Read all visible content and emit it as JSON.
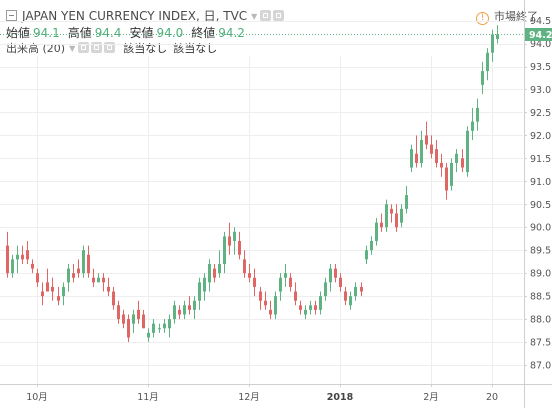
{
  "header": {
    "title": "JAPAN YEN CURRENCY INDEX, 日, TVC",
    "ohlc": [
      {
        "label": "始値",
        "value": "94.1"
      },
      {
        "label": "高値",
        "value": "94.4"
      },
      {
        "label": "安値",
        "value": "94.0"
      },
      {
        "label": "終値",
        "value": "94.2"
      }
    ],
    "volume_label": "出来高 (20)",
    "na_1": "該当なし",
    "na_2": "該当なし",
    "status": "市場終了"
  },
  "colors": {
    "up": "#5fb382",
    "down": "#e06666",
    "grid": "#eeeeee",
    "last_price": "#5fb382"
  },
  "chart_data": {
    "type": "candlestick",
    "ylim": [
      87.0,
      94.6
    ],
    "y_ticks": [
      "87.0",
      "87.5",
      "88.0",
      "88.5",
      "89.0",
      "89.5",
      "90.0",
      "90.5",
      "91.0",
      "91.5",
      "92.0",
      "92.5",
      "93.0",
      "93.5",
      "94.0",
      "94.5"
    ],
    "x_ticks": [
      {
        "label": "10月",
        "index": 6,
        "bold": false
      },
      {
        "label": "11月",
        "index": 28,
        "bold": false
      },
      {
        "label": "12月",
        "index": 48,
        "bold": false
      },
      {
        "label": "2018",
        "index": 66,
        "bold": true
      },
      {
        "label": "2月",
        "index": 84,
        "bold": false
      },
      {
        "label": "20",
        "index": 96,
        "bold": false
      }
    ],
    "last_price": "94.2",
    "candles": [
      [
        89.6,
        89.9,
        88.9,
        89.0
      ],
      [
        89.0,
        89.4,
        88.9,
        89.3
      ],
      [
        89.3,
        89.6,
        89.0,
        89.4
      ],
      [
        89.4,
        89.6,
        89.2,
        89.3
      ],
      [
        89.5,
        89.7,
        89.2,
        89.3
      ],
      [
        89.2,
        89.3,
        89.0,
        89.1
      ],
      [
        89.0,
        89.1,
        88.7,
        88.8
      ],
      [
        88.6,
        88.8,
        88.3,
        88.5
      ],
      [
        88.8,
        89.1,
        88.6,
        88.6
      ],
      [
        88.7,
        88.9,
        88.4,
        88.6
      ],
      [
        88.5,
        88.7,
        88.3,
        88.4
      ],
      [
        88.5,
        88.8,
        88.3,
        88.7
      ],
      [
        88.8,
        89.2,
        88.6,
        89.1
      ],
      [
        89.0,
        89.2,
        88.8,
        88.9
      ],
      [
        89.1,
        89.3,
        88.9,
        89.0
      ],
      [
        89.0,
        89.6,
        88.9,
        89.5
      ],
      [
        89.4,
        89.6,
        88.9,
        89.0
      ],
      [
        88.9,
        89.1,
        88.7,
        88.8
      ],
      [
        88.8,
        89.0,
        88.8,
        88.9
      ],
      [
        88.9,
        89.0,
        88.6,
        88.8
      ],
      [
        88.7,
        88.9,
        88.5,
        88.6
      ],
      [
        88.6,
        88.7,
        88.2,
        88.3
      ],
      [
        88.3,
        88.4,
        87.9,
        88.0
      ],
      [
        88.1,
        88.2,
        87.8,
        87.9
      ],
      [
        88.0,
        88.1,
        87.5,
        87.6
      ],
      [
        87.9,
        88.2,
        87.7,
        88.1
      ],
      [
        88.2,
        88.4,
        87.9,
        88.0
      ],
      [
        88.1,
        88.2,
        87.8,
        87.8
      ],
      [
        87.6,
        87.8,
        87.5,
        87.7
      ],
      [
        87.7,
        88.0,
        87.6,
        87.9
      ],
      [
        87.8,
        87.9,
        87.7,
        87.8
      ],
      [
        87.8,
        88.0,
        87.7,
        87.9
      ],
      [
        87.8,
        88.1,
        87.6,
        88.0
      ],
      [
        88.0,
        88.4,
        87.9,
        88.3
      ],
      [
        88.2,
        88.3,
        88.0,
        88.1
      ],
      [
        88.1,
        88.4,
        88.0,
        88.3
      ],
      [
        88.3,
        88.5,
        88.1,
        88.2
      ],
      [
        88.2,
        88.5,
        88.0,
        88.4
      ],
      [
        88.4,
        88.9,
        88.2,
        88.8
      ],
      [
        88.6,
        89.0,
        88.4,
        88.9
      ],
      [
        88.8,
        89.3,
        88.6,
        89.2
      ],
      [
        89.1,
        89.2,
        88.8,
        88.9
      ],
      [
        89.0,
        89.5,
        88.9,
        89.2
      ],
      [
        89.2,
        89.9,
        89.0,
        89.8
      ],
      [
        89.8,
        90.1,
        89.4,
        89.6
      ],
      [
        89.7,
        90.0,
        89.4,
        89.9
      ],
      [
        89.7,
        89.9,
        89.3,
        89.4
      ],
      [
        89.3,
        89.5,
        88.9,
        89.0
      ],
      [
        89.0,
        89.2,
        88.8,
        88.9
      ],
      [
        88.9,
        89.1,
        88.5,
        88.7
      ],
      [
        88.6,
        88.7,
        88.2,
        88.4
      ],
      [
        88.4,
        88.6,
        88.2,
        88.3
      ],
      [
        88.2,
        88.4,
        88.0,
        88.1
      ],
      [
        88.1,
        88.6,
        88.0,
        88.5
      ],
      [
        88.6,
        89.0,
        88.4,
        88.9
      ],
      [
        88.9,
        89.2,
        88.7,
        89.0
      ],
      [
        88.9,
        89.0,
        88.6,
        88.7
      ],
      [
        88.6,
        88.8,
        88.3,
        88.4
      ],
      [
        88.3,
        88.4,
        88.1,
        88.2
      ],
      [
        88.1,
        88.3,
        88.0,
        88.2
      ],
      [
        88.2,
        88.4,
        88.1,
        88.3
      ],
      [
        88.3,
        88.4,
        88.1,
        88.2
      ],
      [
        88.2,
        88.6,
        88.1,
        88.5
      ],
      [
        88.5,
        88.9,
        88.4,
        88.8
      ],
      [
        88.8,
        89.2,
        88.6,
        89.1
      ],
      [
        89.1,
        89.2,
        88.8,
        88.9
      ],
      [
        88.9,
        89.0,
        88.6,
        88.7
      ],
      [
        88.6,
        88.7,
        88.3,
        88.4
      ],
      [
        88.3,
        88.6,
        88.2,
        88.5
      ],
      [
        88.5,
        88.8,
        88.4,
        88.7
      ],
      [
        88.7,
        88.8,
        88.5,
        88.6
      ],
      [
        89.3,
        89.6,
        89.2,
        89.5
      ],
      [
        89.5,
        89.8,
        89.4,
        89.7
      ],
      [
        89.7,
        90.2,
        89.6,
        90.1
      ],
      [
        90.1,
        90.3,
        89.9,
        90.0
      ],
      [
        90.0,
        90.6,
        89.9,
        90.5
      ],
      [
        90.4,
        90.5,
        90.1,
        90.3
      ],
      [
        90.3,
        90.5,
        89.9,
        90.0
      ],
      [
        90.1,
        90.5,
        90.0,
        90.4
      ],
      [
        90.4,
        90.9,
        90.3,
        90.7
      ],
      [
        91.3,
        91.8,
        91.2,
        91.7
      ],
      [
        91.6,
        92.0,
        91.3,
        91.4
      ],
      [
        91.4,
        92.1,
        91.3,
        91.9
      ],
      [
        92.0,
        92.3,
        91.7,
        91.8
      ],
      [
        91.8,
        92.0,
        91.5,
        91.6
      ],
      [
        91.7,
        91.9,
        91.3,
        91.4
      ],
      [
        91.4,
        91.6,
        91.1,
        91.3
      ],
      [
        91.3,
        91.4,
        90.6,
        90.8
      ],
      [
        90.9,
        91.5,
        90.8,
        91.4
      ],
      [
        91.4,
        91.7,
        91.2,
        91.6
      ],
      [
        91.5,
        91.7,
        91.2,
        91.3
      ],
      [
        91.2,
        92.2,
        91.1,
        92.1
      ],
      [
        92.1,
        92.6,
        91.9,
        92.3
      ],
      [
        92.3,
        92.8,
        92.1,
        92.6
      ],
      [
        93.1,
        93.6,
        92.9,
        93.4
      ],
      [
        93.4,
        93.9,
        93.2,
        93.8
      ],
      [
        93.8,
        94.3,
        93.6,
        94.2
      ],
      [
        94.1,
        94.4,
        94.0,
        94.2
      ]
    ]
  }
}
